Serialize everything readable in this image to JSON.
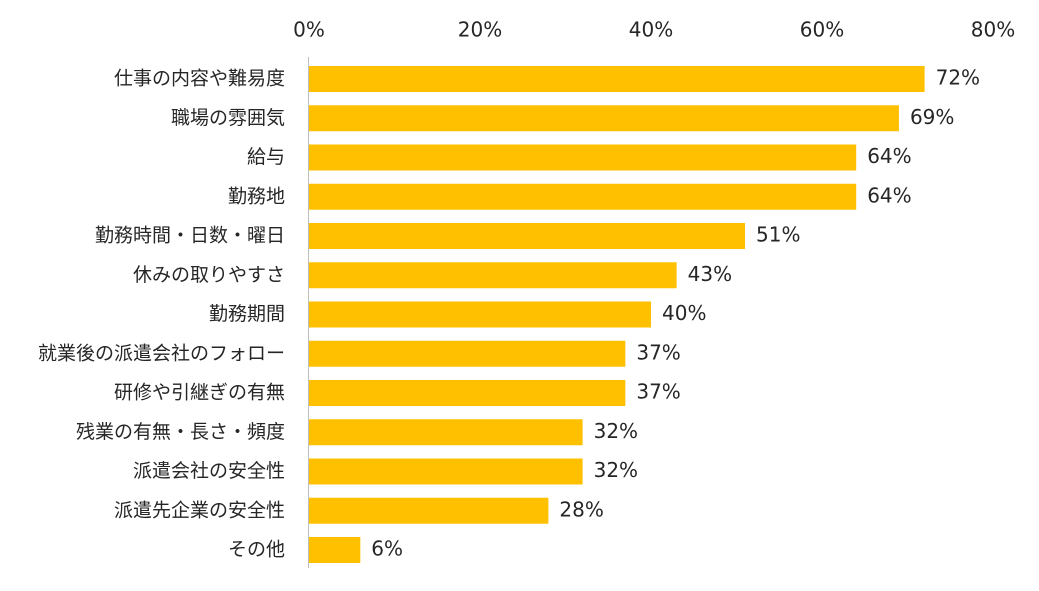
{
  "chart_data": {
    "type": "bar",
    "orientation": "horizontal",
    "categories": [
      "仕事の内容や難易度",
      "職場の雰囲気",
      "給与",
      "勤務地",
      "勤務時間・日数・曜日",
      "休みの取りやすさ",
      "勤務期間",
      "就業後の派遣会社のフォロー",
      "研修や引継ぎの有無",
      "残業の有無・長さ・頻度",
      "派遣会社の安全性",
      "派遣先企業の安全性",
      "その他"
    ],
    "values": [
      72,
      69,
      64,
      64,
      51,
      43,
      40,
      37,
      37,
      32,
      32,
      28,
      6
    ],
    "value_labels": [
      "72%",
      "69%",
      "64%",
      "64%",
      "51%",
      "43%",
      "40%",
      "37%",
      "37%",
      "32%",
      "32%",
      "28%",
      "6%"
    ],
    "x_ticks": [
      0,
      20,
      40,
      60,
      80
    ],
    "x_tick_labels": [
      "0%",
      "20%",
      "40%",
      "60%",
      "80%"
    ],
    "xlim": [
      0,
      80
    ],
    "x_axis_position": "top",
    "grid": false,
    "legend": "none",
    "bar_color": "#FFC000",
    "axis_color": "#BFBFBF"
  }
}
